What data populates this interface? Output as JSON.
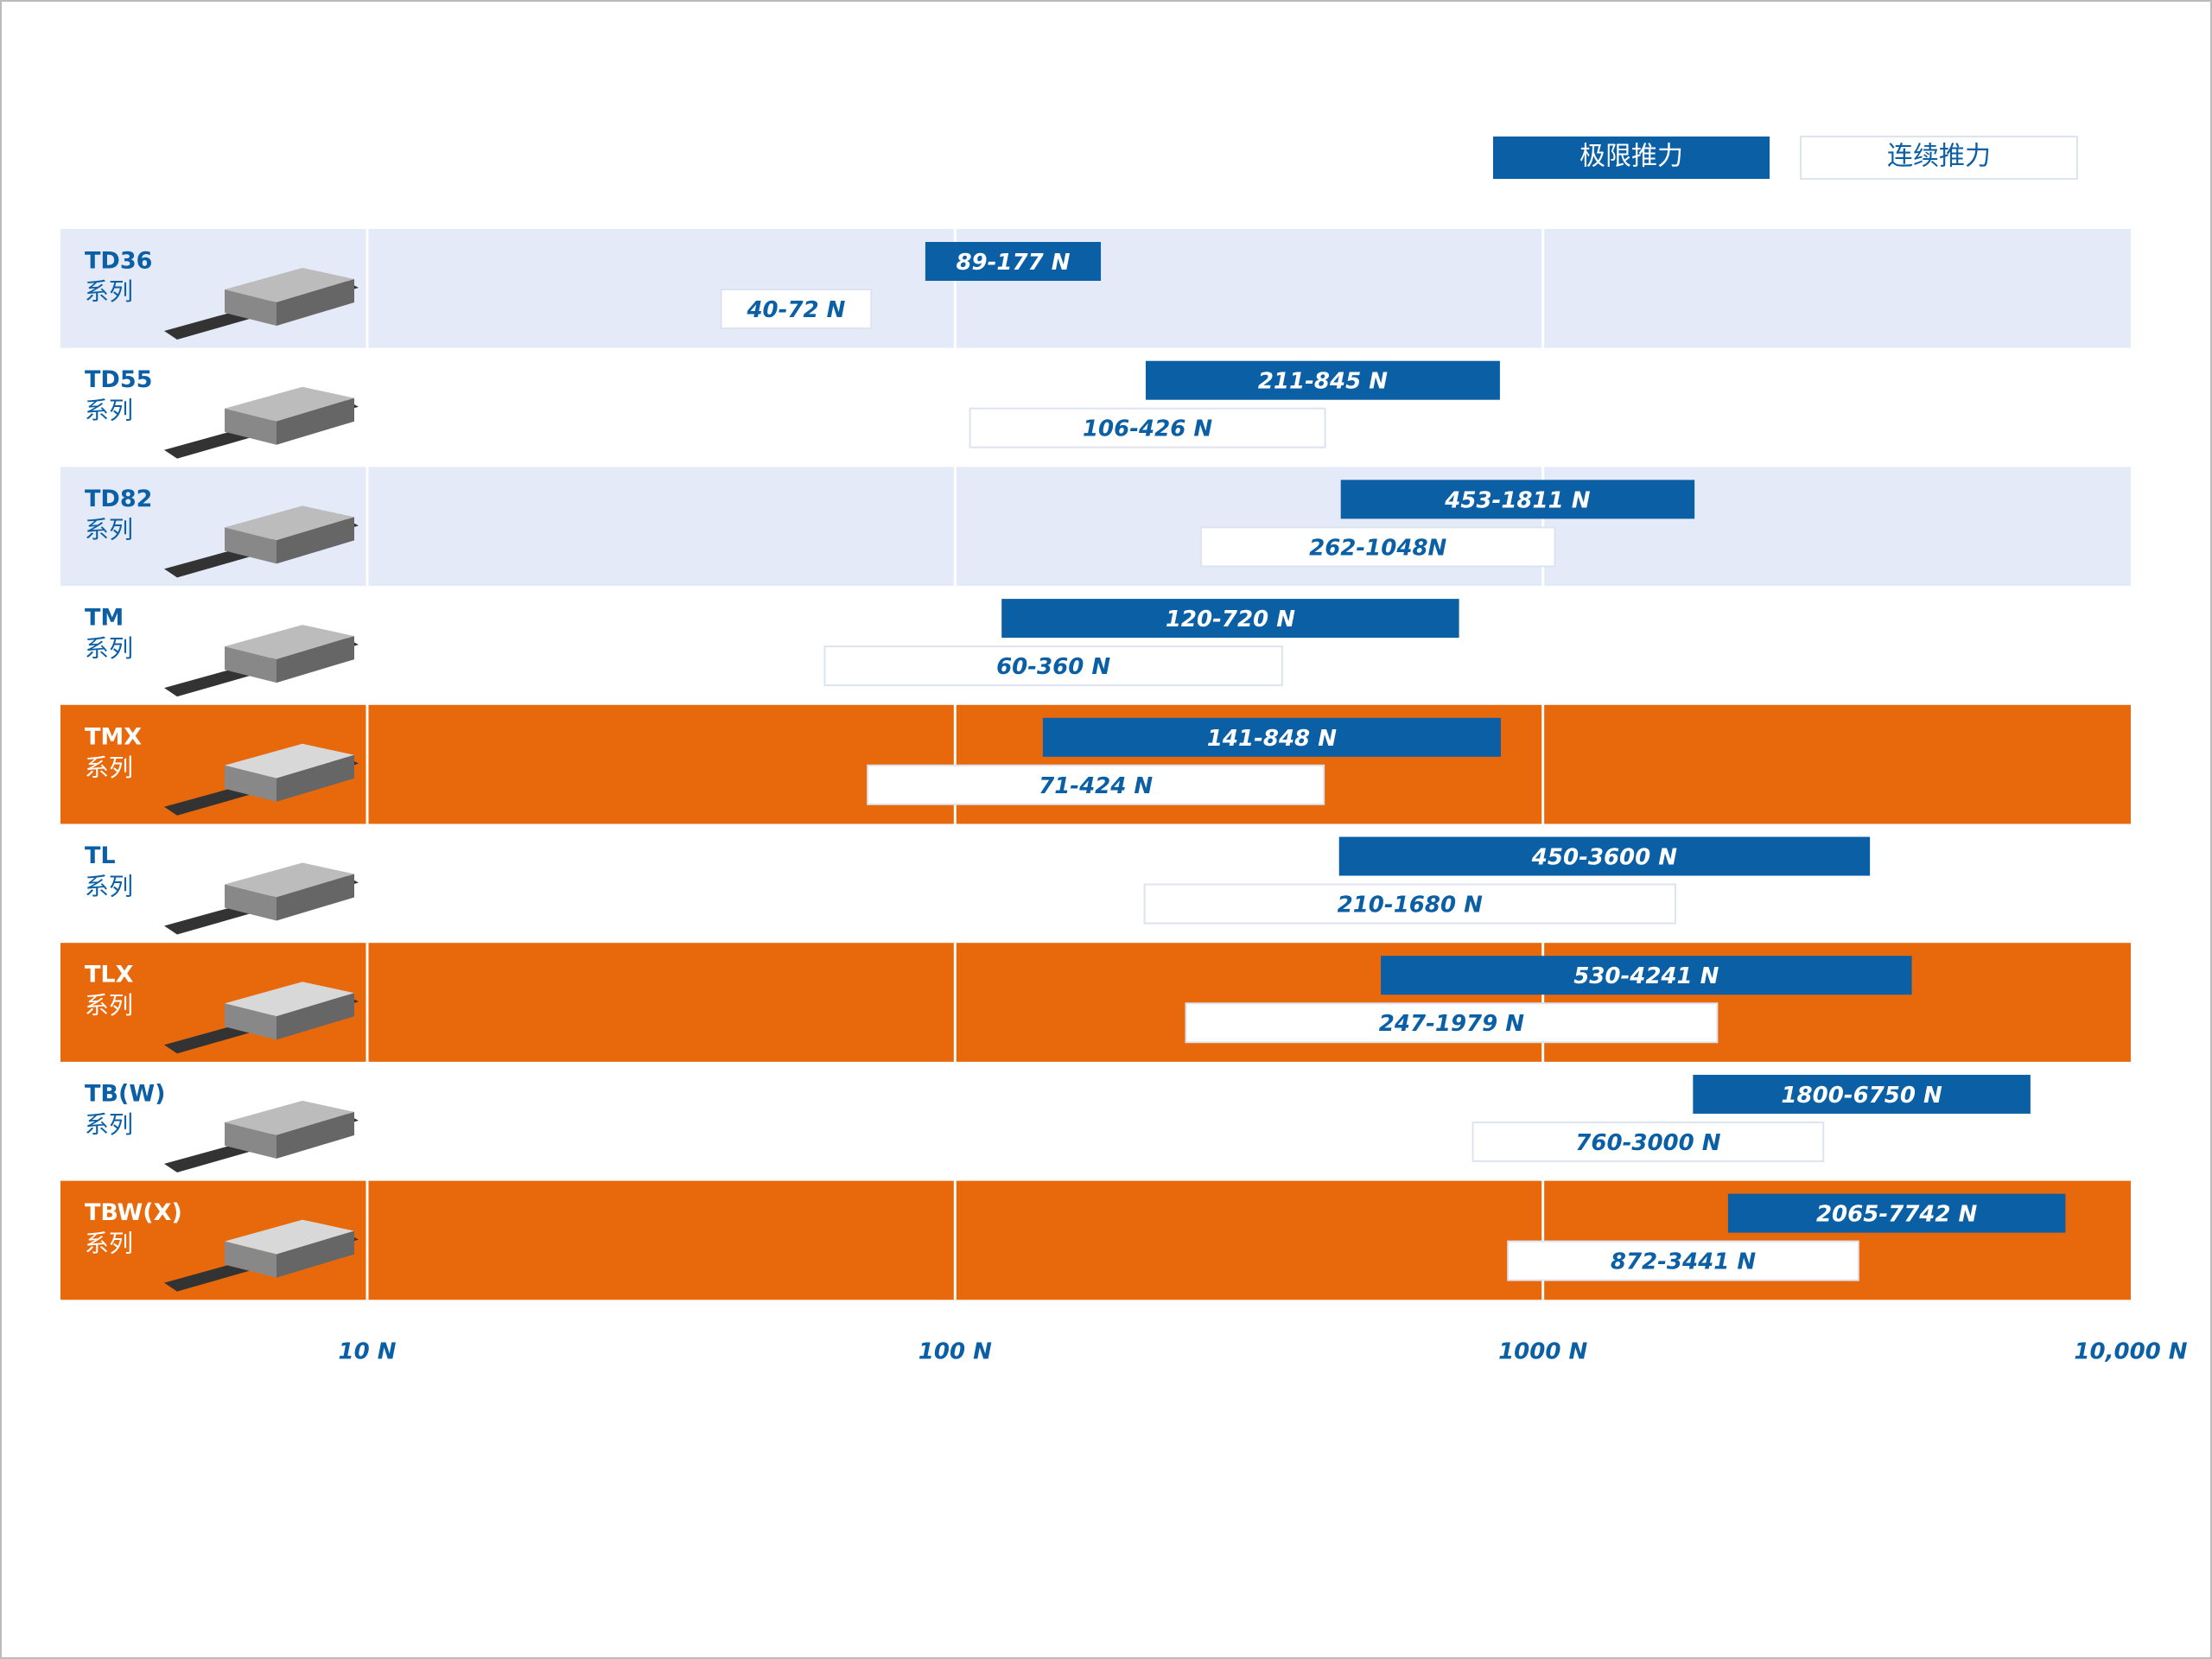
{
  "chart_data": {
    "type": "range-bar",
    "x_scale": "log",
    "categories": [
      "TD36",
      "TD55",
      "TD82",
      "TM",
      "TMX",
      "TL",
      "TLX",
      "TB(W)",
      "TBW(X)"
    ],
    "category_subtitles": [
      "系列",
      "系列",
      "系列",
      "系列",
      "系列",
      "系列",
      "系列",
      "系列",
      "系列"
    ],
    "row_colors": [
      "#e4eaf7",
      "#ffffff",
      "#e4eaf7",
      "#ffffff",
      "#e8680c",
      "#ffffff",
      "#e8680c",
      "#ffffff",
      "#e8680c"
    ],
    "series": [
      {
        "name": "极限推力",
        "color": "#0a5fa5",
        "values": [
          [
            89,
            177
          ],
          [
            211,
            845
          ],
          [
            453,
            1811
          ],
          [
            120,
            720
          ],
          [
            141,
            848
          ],
          [
            450,
            3600
          ],
          [
            530,
            4241
          ],
          [
            1800,
            6750
          ],
          [
            2065,
            7742
          ]
        ],
        "value_labels": [
          "89-177 N",
          "211-845 N",
          "453-1811 N",
          "120-720 N",
          "141-848 N",
          "450-3600 N",
          "530-4241 N",
          "1800-6750 N",
          "2065-7742 N"
        ]
      },
      {
        "name": "连续推力",
        "color": "#ffffff",
        "values": [
          [
            40,
            72
          ],
          [
            106,
            426
          ],
          [
            262,
            1048
          ],
          [
            60,
            360
          ],
          [
            71,
            424
          ],
          [
            210,
            1680
          ],
          [
            247,
            1979
          ],
          [
            760,
            3000
          ],
          [
            872,
            3441
          ]
        ],
        "value_labels": [
          "40-72 N",
          "106-426 N",
          "262-1048N",
          "60-360 N",
          "71-424 N",
          "210-1680 N",
          "247-1979 N",
          "760-3000 N",
          "872-3441 N"
        ]
      }
    ],
    "xlim": [
      10,
      10000
    ],
    "xticks": [
      {
        "value": 10,
        "label": "10 N"
      },
      {
        "value": 100,
        "label": "100 N"
      },
      {
        "value": 1000,
        "label": "1000 N"
      },
      {
        "value": 10000,
        "label": "10,000 N"
      }
    ],
    "grid": true
  }
}
